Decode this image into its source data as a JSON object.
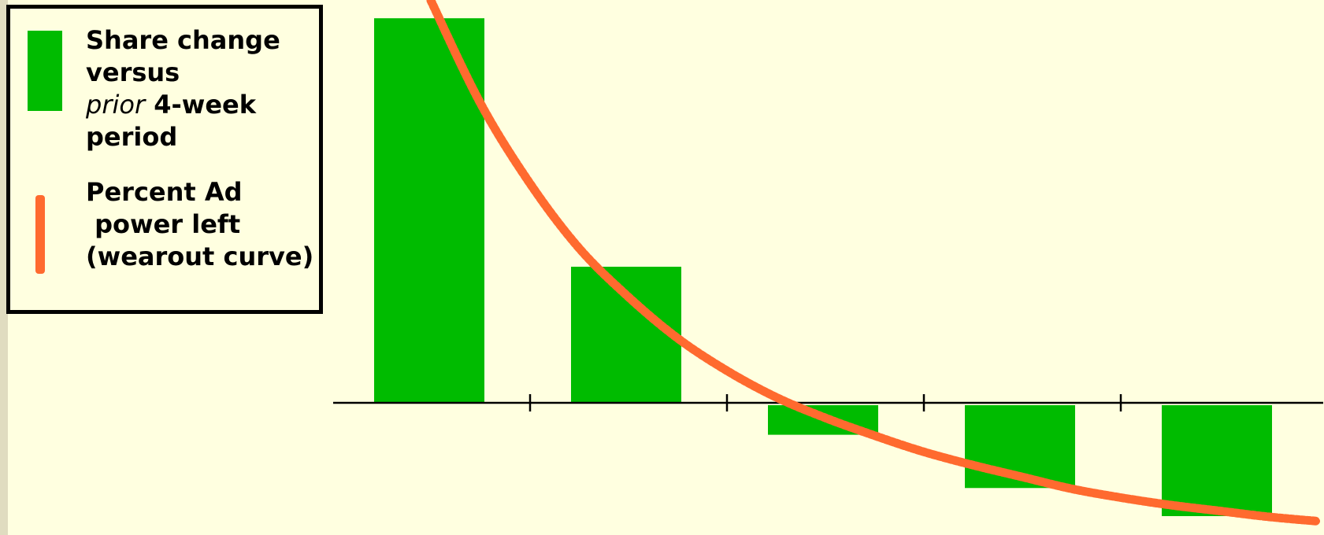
{
  "colors": {
    "background": "#ffffe0",
    "bar": "#00bb00",
    "curve": "#ff6a2f",
    "axis": "#000000"
  },
  "legend": {
    "share_lines": [
      [
        "",
        "Share change"
      ],
      [
        "",
        "versus"
      ],
      [
        "prior",
        " 4-week"
      ],
      [
        "",
        "period"
      ]
    ],
    "wearout_lines": [
      "Percent Ad",
      " power left",
      "(wearout curve)"
    ]
  },
  "chart_data": {
    "type": "bar",
    "title": "",
    "xlabel": "",
    "ylabel": "",
    "categories": [
      "",
      "",
      "",
      "",
      ""
    ],
    "ylim": [
      -1.0,
      3.0
    ],
    "grid": false,
    "legend_position": "top-left",
    "series": [
      {
        "name": "Share change versus prior 4-week period",
        "type": "bar",
        "values": [
          2.6,
          0.92,
          -0.2,
          -0.56,
          -0.75
        ]
      },
      {
        "name": "Percent Ad power left (wearout curve)",
        "type": "line",
        "x": [
          0.0,
          0.25,
          0.5,
          0.75,
          1.0,
          1.25,
          1.5,
          1.75,
          2.0,
          2.25,
          2.5,
          2.75,
          3.0,
          3.25,
          3.5,
          3.75,
          4.0,
          4.25,
          4.5
        ],
        "values": [
          2.72,
          2.03,
          1.49,
          1.05,
          0.72,
          0.44,
          0.22,
          0.04,
          -0.1,
          -0.22,
          -0.33,
          -0.42,
          -0.5,
          -0.58,
          -0.64,
          -0.69,
          -0.73,
          -0.77,
          -0.8
        ]
      }
    ]
  }
}
